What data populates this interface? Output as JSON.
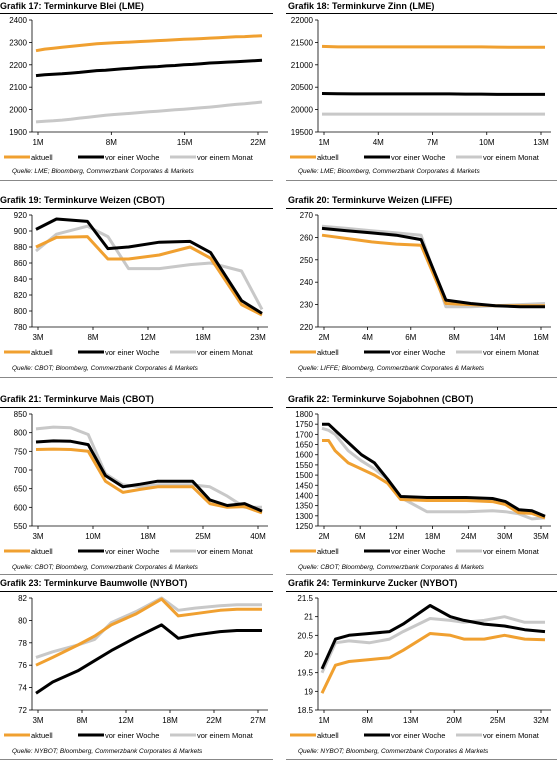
{
  "legend_labels": [
    "aktuell",
    "vor einer Woche",
    "vor einem Monat"
  ],
  "colors": {
    "aktuell": "#f0a030",
    "vor_einer_woche": "#000000",
    "vor_einem_monat": "#c8c8c8"
  },
  "charts": [
    {
      "prefix": "Grafik 17:",
      "title": "Terminkurve Blei (LME)",
      "source": "Quelle: LME; Bloomberg, Commerzbank Corporates & Markets",
      "chart_data": {
        "type": "line",
        "ylim": [
          1900,
          2400
        ],
        "yticks": [
          1900,
          2000,
          2100,
          2200,
          2300,
          2400
        ],
        "xticks": [
          "1M",
          "8M",
          "15M",
          "22M"
        ],
        "x": [
          1,
          2,
          3,
          4,
          5,
          6,
          7,
          8,
          9,
          10,
          11,
          12,
          13,
          14,
          15,
          16,
          17,
          18,
          19,
          20,
          21,
          22,
          23,
          24,
          25,
          26,
          27
        ],
        "series": [
          {
            "name": "aktuell",
            "key": "aktuell",
            "values": [
              2263,
              2270,
              2274,
              2278,
              2282,
              2286,
              2290,
              2294,
              2296,
              2298,
              2300,
              2302,
              2304,
              2306,
              2308,
              2310,
              2312,
              2314,
              2315,
              2317,
              2319,
              2321,
              2323,
              2325,
              2326,
              2328,
              2330
            ]
          },
          {
            "name": "vor einer Woche",
            "key": "vor_einer_woche",
            "values": [
              2152,
              2156,
              2158,
              2160,
              2163,
              2166,
              2170,
              2174,
              2176,
              2179,
              2182,
              2185,
              2188,
              2190,
              2192,
              2195,
              2197,
              2200,
              2202,
              2205,
              2208,
              2210,
              2212,
              2214,
              2216,
              2218,
              2220
            ]
          },
          {
            "name": "vor einem Monat",
            "key": "vor_einem_monat",
            "values": [
              1945,
              1948,
              1950,
              1953,
              1957,
              1962,
              1966,
              1970,
              1975,
              1978,
              1981,
              1984,
              1987,
              1990,
              1993,
              1996,
              1999,
              2002,
              2005,
              2008,
              2011,
              2015,
              2019,
              2023,
              2026,
              2030,
              2034
            ]
          }
        ]
      }
    },
    {
      "prefix": "Grafik 18:",
      "title": "Terminkurve Zinn (LME)",
      "source": "Quelle: LME; Bloomberg, Commerzbank Corporates & Markets",
      "chart_data": {
        "type": "line",
        "ylim": [
          19500,
          22000
        ],
        "yticks": [
          19500,
          20000,
          20500,
          21000,
          21500,
          22000
        ],
        "xticks": [
          "1M",
          "4M",
          "7M",
          "10M",
          "13M"
        ],
        "x": [
          1,
          2,
          3,
          4,
          5,
          6,
          7,
          8,
          9,
          10,
          11,
          12,
          13,
          14,
          15
        ],
        "series": [
          {
            "name": "aktuell",
            "key": "aktuell",
            "values": [
              21410,
              21400,
              21400,
              21400,
              21400,
              21400,
              21400,
              21400,
              21400,
              21400,
              21400,
              21395,
              21390,
              21390,
              21390
            ]
          },
          {
            "name": "vor einer Woche",
            "key": "vor_einer_woche",
            "values": [
              20360,
              20355,
              20350,
              20350,
              20350,
              20350,
              20350,
              20350,
              20350,
              20345,
              20345,
              20340,
              20340,
              20340,
              20340
            ]
          },
          {
            "name": "vor einem Monat",
            "key": "vor_einem_monat",
            "values": [
              19900,
              19900,
              19900,
              19900,
              19900,
              19900,
              19900,
              19900,
              19900,
              19900,
              19900,
              19900,
              19900,
              19900,
              19900
            ]
          }
        ]
      }
    },
    {
      "prefix": "Grafik 19:",
      "title": "Terminkurve Weizen (CBOT)",
      "source": "Quelle: CBOT; Bloomberg, Commerzbank Corporates & Markets",
      "chart_data": {
        "type": "line",
        "ylim": [
          780,
          920
        ],
        "yticks": [
          780,
          800,
          820,
          840,
          860,
          880,
          900,
          920
        ],
        "xticks": [
          "3M",
          "8M",
          "12M",
          "18M",
          "23M"
        ],
        "x": [
          3,
          5,
          8,
          10,
          12,
          15,
          18,
          20,
          23,
          25
        ],
        "series": [
          {
            "name": "aktuell",
            "key": "aktuell",
            "values": [
              880,
              892,
              893,
              865,
              865,
              870,
              880,
              866,
              808,
              795
            ]
          },
          {
            "name": "vor einer Woche",
            "key": "vor_einer_woche",
            "values": [
              902,
              915,
              912,
              878,
              880,
              886,
              887,
              873,
              813,
              797
            ]
          },
          {
            "name": "vor einem Monat",
            "key": "vor_einem_monat",
            "values": [
              875,
              896,
              906,
              893,
              853,
              853,
              858,
              860,
              850,
              802
            ]
          }
        ]
      }
    },
    {
      "prefix": "Grafik 20:",
      "title": "Terminkurve Weizen (LIFFE)",
      "source": "Quelle: LIFFE; Bloomberg, Commerzbank Corporates & Markets",
      "chart_data": {
        "type": "line",
        "ylim": [
          220,
          270
        ],
        "yticks": [
          220,
          230,
          240,
          250,
          260,
          270
        ],
        "xticks": [
          "2M",
          "4M",
          "6M",
          "8M",
          "14M",
          "16M"
        ],
        "x": [
          1,
          2,
          3,
          4,
          5,
          6,
          7,
          8,
          9,
          10
        ],
        "series": [
          {
            "name": "aktuell",
            "key": "aktuell",
            "values": [
              261,
              259.5,
              258,
              257,
              256.5,
              230.5,
              230,
              229.5,
              229.5,
              229.5
            ]
          },
          {
            "name": "vor einer Woche",
            "key": "vor_einer_woche",
            "values": [
              264,
              263,
              262,
              261,
              259,
              232,
              230.5,
              229.5,
              229,
              229
            ]
          },
          {
            "name": "vor einem Monat",
            "key": "vor_einem_monat",
            "values": [
              265,
              264,
              263,
              262,
              261,
              229,
              229,
              229.5,
              230,
              230.5
            ]
          }
        ]
      }
    },
    {
      "prefix": "Grafik 21:",
      "title": "Terminkurve Mais (CBOT)",
      "source": "Quelle: CBOT; Bloomberg, Commerzbank Corporates & Markets",
      "chart_data": {
        "type": "line",
        "ylim": [
          550,
          850
        ],
        "yticks": [
          550,
          600,
          650,
          700,
          750,
          800,
          850
        ],
        "xticks": [
          "3M",
          "10M",
          "18M",
          "25M",
          "40M"
        ],
        "x": [
          1,
          2,
          3,
          4,
          5,
          6,
          7,
          8,
          9,
          10,
          11,
          12,
          13,
          14
        ],
        "series": [
          {
            "name": "aktuell",
            "key": "aktuell",
            "values": [
              755,
              756,
              755,
              750,
              670,
              640,
              648,
              655,
              655,
              655,
              610,
              600,
              602,
              585
            ]
          },
          {
            "name": "vor einer Woche",
            "key": "vor_einer_woche",
            "values": [
              775,
              778,
              777,
              768,
              685,
              655,
              662,
              670,
              670,
              670,
              620,
              605,
              610,
              590
            ]
          },
          {
            "name": "vor einem Monat",
            "key": "vor_einem_monat",
            "values": [
              810,
              815,
              813,
              795,
              690,
              660,
              655,
              660,
              660,
              660,
              655,
              630,
              600,
              600
            ]
          }
        ]
      }
    },
    {
      "prefix": "Grafik 22:",
      "title": "Terminkurve Sojabohnen (CBOT)",
      "source": "Quelle: CBOT; Bloomberg, Commerzbank Corporates & Markets",
      "chart_data": {
        "type": "line",
        "ylim": [
          1250,
          1800
        ],
        "yticks": [
          1250,
          1300,
          1350,
          1400,
          1450,
          1500,
          1550,
          1600,
          1650,
          1700,
          1750,
          1800
        ],
        "xticks": [
          "2M",
          "6M",
          "12M",
          "18M",
          "24M",
          "30M",
          "35M"
        ],
        "x": [
          2,
          3,
          4,
          6,
          8,
          10,
          12,
          14,
          18,
          24,
          28,
          30,
          32,
          34,
          36
        ],
        "series": [
          {
            "name": "aktuell",
            "key": "aktuell",
            "values": [
              1670,
              1670,
              1620,
              1560,
              1530,
              1500,
              1460,
              1380,
              1375,
              1375,
              1370,
              1355,
              1315,
              1312,
              1290
            ]
          },
          {
            "name": "vor einer Woche",
            "key": "vor_einer_woche",
            "values": [
              1750,
              1750,
              1720,
              1660,
              1600,
              1560,
              1480,
              1395,
              1390,
              1390,
              1385,
              1370,
              1330,
              1325,
              1298
            ]
          },
          {
            "name": "vor einem Monat",
            "key": "vor_einem_monat",
            "values": [
              1730,
              1720,
              1700,
              1620,
              1570,
              1530,
              1480,
              1390,
              1320,
              1320,
              1325,
              1320,
              1310,
              1285,
              1290
            ]
          }
        ]
      }
    },
    {
      "prefix": "Grafik 23:",
      "title": "Terminkurve Baumwolle (NYBOT)",
      "source": "Quelle: NYBOT; Bloomberg, Commerzbank Corporates & Markets",
      "chart_data": {
        "type": "line",
        "ylim": [
          72,
          82
        ],
        "yticks": [
          72,
          74,
          76,
          78,
          80,
          82
        ],
        "xticks": [
          "3M",
          "8M",
          "12M",
          "18M",
          "22M",
          "27M"
        ],
        "x": [
          3,
          5,
          8,
          10,
          12,
          15,
          18,
          20,
          22,
          25,
          27,
          30
        ],
        "series": [
          {
            "name": "aktuell",
            "key": "aktuell",
            "values": [
              76,
              76.7,
              77.8,
              78.6,
              79.6,
              80.6,
              81.9,
              80.4,
              80.6,
              80.9,
              81.0,
              81.0
            ]
          },
          {
            "name": "vor einer Woche",
            "key": "vor_einer_woche",
            "values": [
              73.5,
              74.5,
              75.5,
              76.4,
              77.3,
              78.5,
              79.6,
              78.4,
              78.7,
              79.0,
              79.1,
              79.1
            ]
          },
          {
            "name": "vor einem Monat",
            "key": "vor_einem_monat",
            "values": [
              76.7,
              77.2,
              77.8,
              78.3,
              79.8,
              80.8,
              82.0,
              80.9,
              81.1,
              81.3,
              81.4,
              81.4
            ]
          }
        ]
      }
    },
    {
      "prefix": "Grafik 24:",
      "title": "Terminkurve Zucker (NYBOT)",
      "source": "Quelle: NYBOT; Bloomberg, Commerzbank Corporates & Markets",
      "chart_data": {
        "type": "line",
        "ylim": [
          18.5,
          21.5
        ],
        "yticks": [
          18.5,
          19.0,
          19.5,
          20.0,
          20.5,
          21.0,
          21.5
        ],
        "xticks": [
          "1M",
          "8M",
          "13M",
          "20M",
          "25M",
          "32M"
        ],
        "x": [
          1,
          3,
          5,
          8,
          11,
          13,
          17,
          20,
          22,
          25,
          28,
          31,
          34
        ],
        "series": [
          {
            "name": "aktuell",
            "key": "aktuell",
            "values": [
              18.95,
              19.7,
              19.8,
              19.85,
              19.9,
              20.1,
              20.55,
              20.5,
              20.4,
              20.4,
              20.5,
              20.4,
              20.38
            ]
          },
          {
            "name": "vor einer Woche",
            "key": "vor_einer_woche",
            "values": [
              19.6,
              20.4,
              20.5,
              20.55,
              20.6,
              20.8,
              21.3,
              21.0,
              20.9,
              20.8,
              20.75,
              20.65,
              20.6
            ]
          },
          {
            "name": "vor einem Monat",
            "key": "vor_einem_monat",
            "values": [
              19.5,
              20.3,
              20.35,
              20.3,
              20.4,
              20.6,
              20.95,
              20.9,
              20.85,
              20.9,
              21.0,
              20.85,
              20.85
            ]
          }
        ]
      }
    }
  ]
}
